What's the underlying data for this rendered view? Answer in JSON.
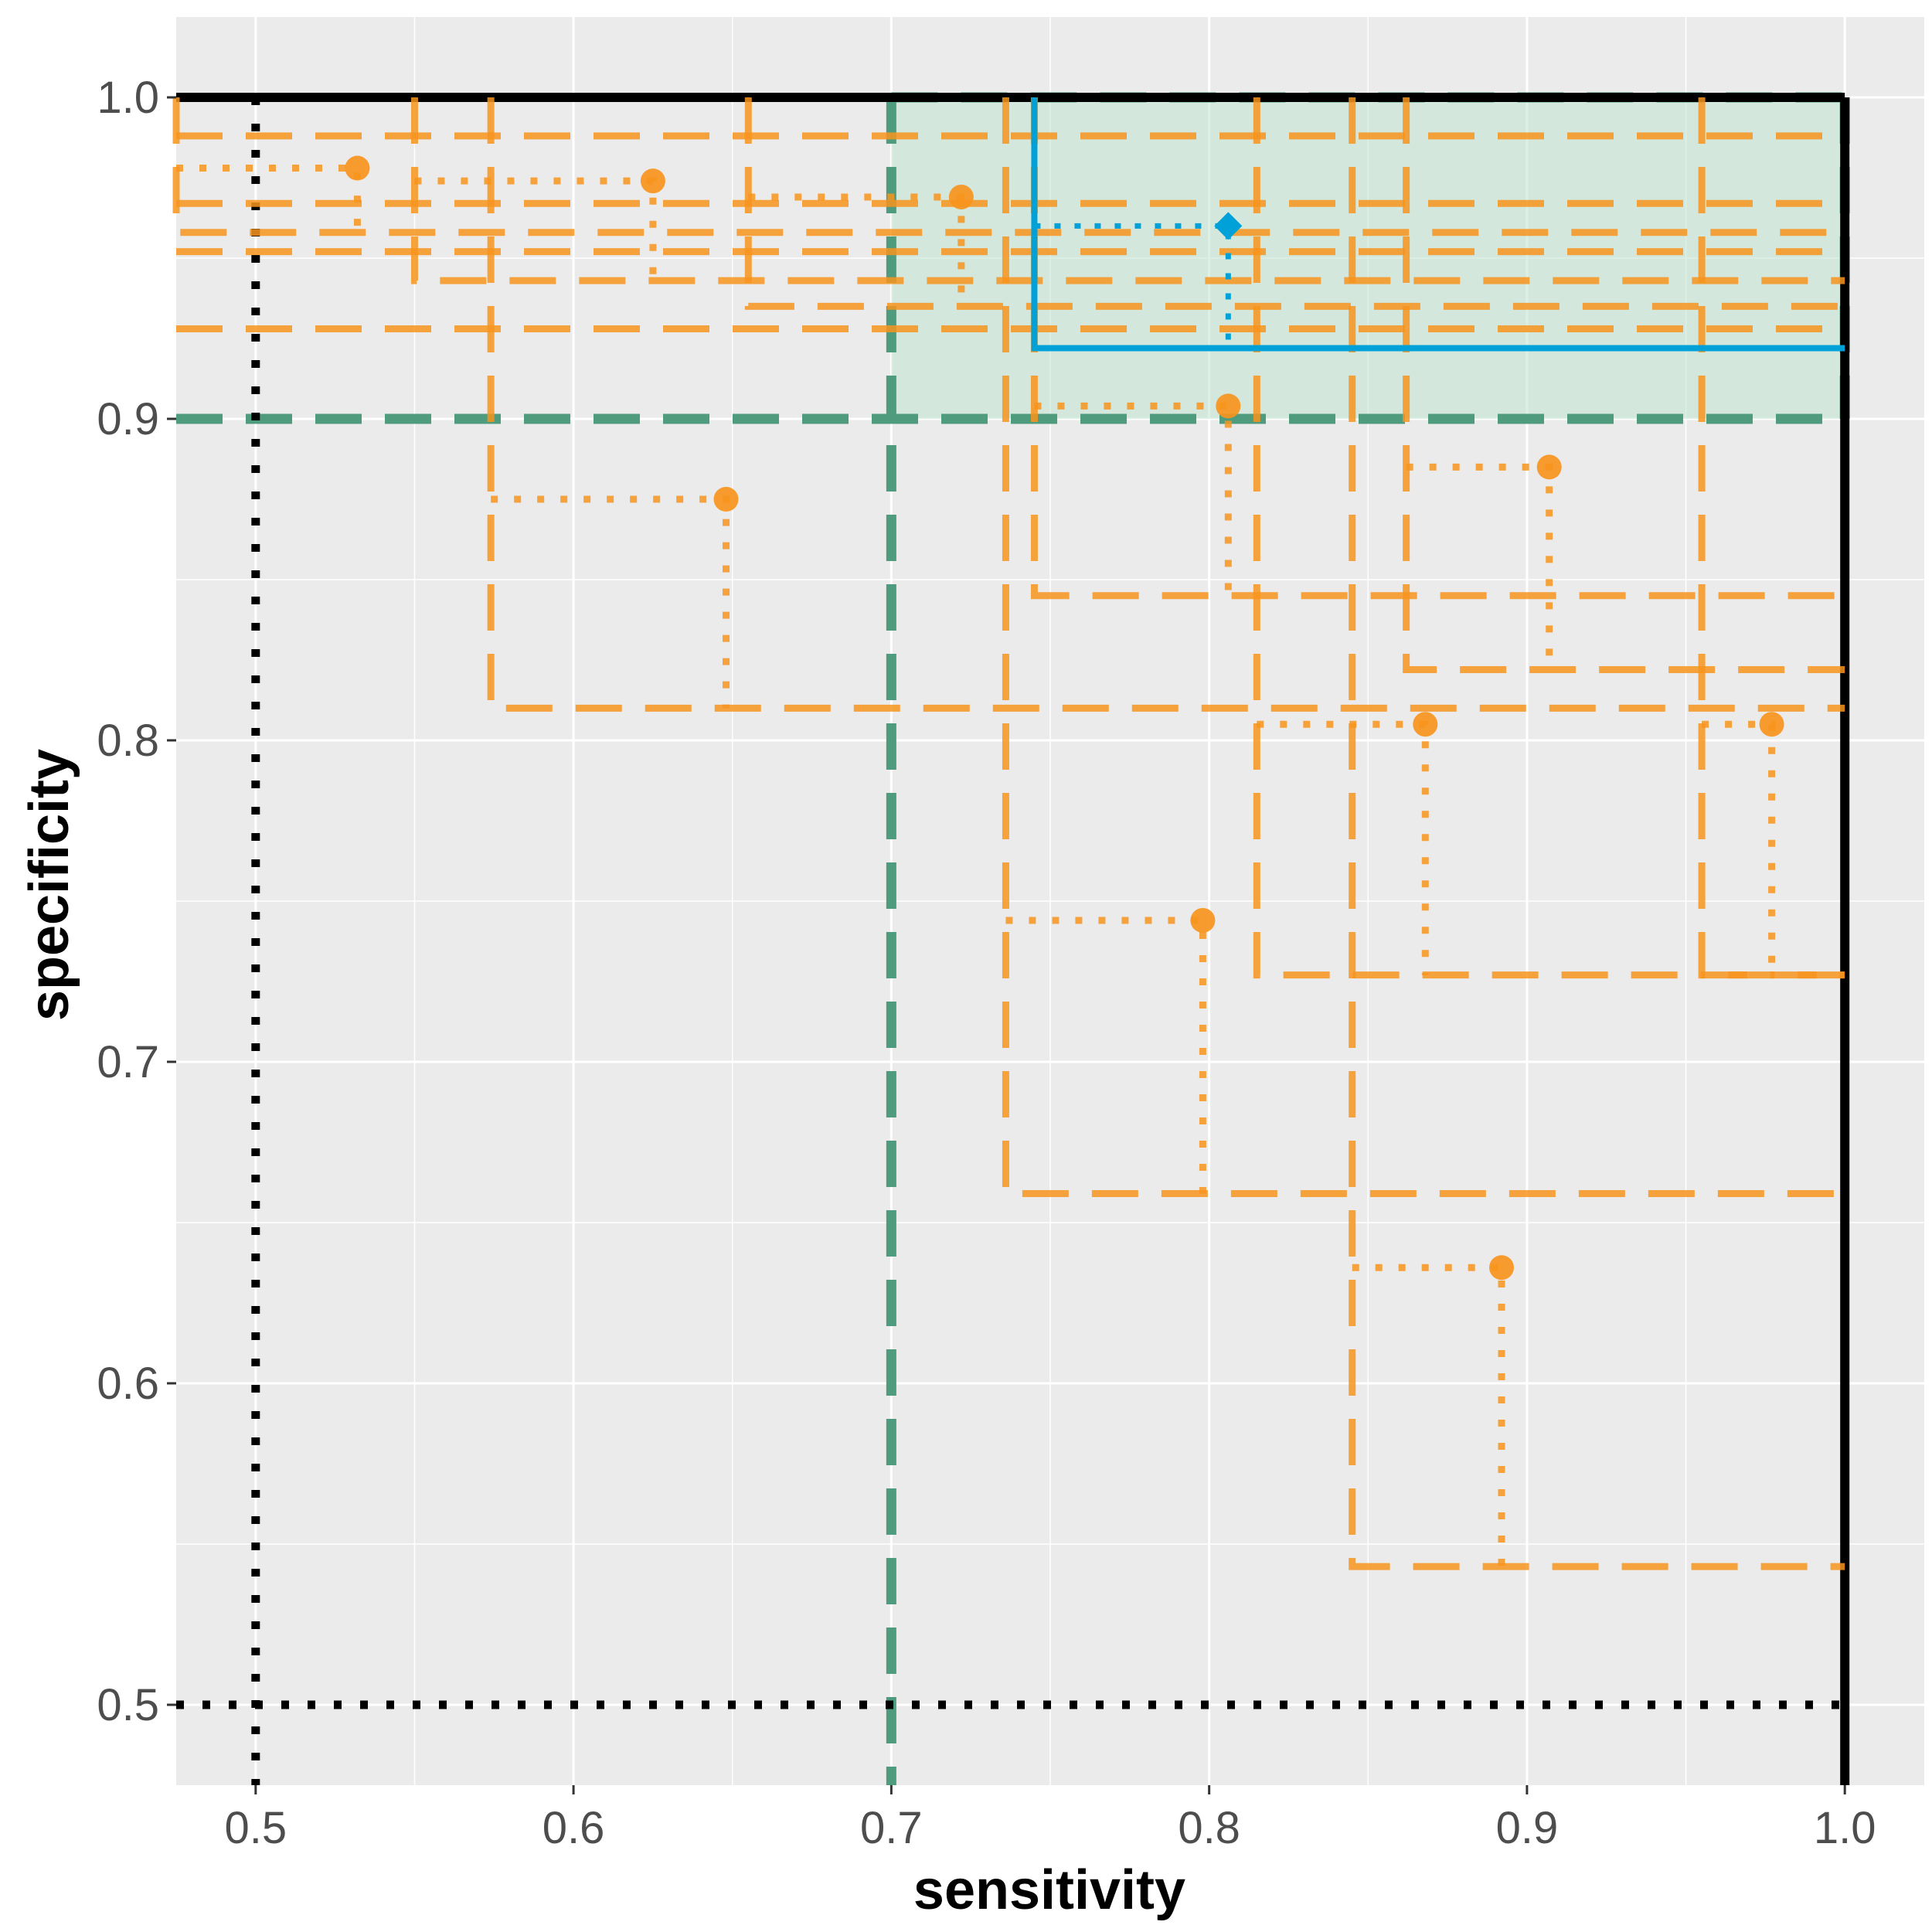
{
  "chart_data": {
    "type": "scatter",
    "title": "",
    "xlabel": "sensitivity",
    "ylabel": "specificity",
    "xlim": [
      0.475,
      1.025
    ],
    "ylim": [
      0.475,
      1.025
    ],
    "xticks": [
      "0.5",
      "0.6",
      "0.7",
      "0.8",
      "0.9",
      "1.0"
    ],
    "yticks": [
      "0.5",
      "0.6",
      "0.7",
      "0.8",
      "0.9",
      "1.0"
    ],
    "grid": true,
    "colors": {
      "panel": "#ebebeb",
      "grid": "#ffffff",
      "studies": "#f7941d",
      "pooled": "#00a0d8",
      "target_region": "#4f9b7e",
      "target_fill": "#bfe3cf",
      "reference": "#000000"
    },
    "target_region": {
      "sensitivity_min": 0.7,
      "specificity_min": 0.9
    },
    "reference_lines": {
      "sensitivity": 0.5,
      "specificity": 0.5
    },
    "studies": [
      {
        "sensitivity": 0.532,
        "specificity": 0.978,
        "ci_sensitivity_lower": 0.475,
        "ci_specificity_lower": 0.958
      },
      {
        "sensitivity": 0.625,
        "specificity": 0.974,
        "ci_sensitivity_lower": 0.55,
        "ci_specificity_lower": 0.943
      },
      {
        "sensitivity": 0.722,
        "specificity": 0.969,
        "ci_sensitivity_lower": 0.655,
        "ci_specificity_lower": 0.935
      },
      {
        "sensitivity": 0.806,
        "specificity": 0.904,
        "ci_sensitivity_lower": 0.745,
        "ci_specificity_lower": 0.845
      },
      {
        "sensitivity": 0.648,
        "specificity": 0.875,
        "ci_sensitivity_lower": 0.574,
        "ci_specificity_lower": 0.81
      },
      {
        "sensitivity": 0.907,
        "specificity": 0.885,
        "ci_sensitivity_lower": 0.862,
        "ci_specificity_lower": 0.822
      },
      {
        "sensitivity": 0.868,
        "specificity": 0.805,
        "ci_sensitivity_lower": 0.815,
        "ci_specificity_lower": 0.727
      },
      {
        "sensitivity": 0.977,
        "specificity": 0.805,
        "ci_sensitivity_lower": 0.955,
        "ci_specificity_lower": 0.727
      },
      {
        "sensitivity": 0.798,
        "specificity": 0.744,
        "ci_sensitivity_lower": 0.736,
        "ci_specificity_lower": 0.659
      },
      {
        "sensitivity": 0.892,
        "specificity": 0.636,
        "ci_sensitivity_lower": 0.845,
        "ci_specificity_lower": 0.543
      }
    ],
    "extra_study_ci_lines": [
      {
        "specificity_lower": 0.988
      },
      {
        "specificity_lower": 0.967
      },
      {
        "specificity_lower": 0.952
      },
      {
        "specificity_lower": 0.928
      }
    ],
    "pooled_estimate": {
      "sensitivity": 0.806,
      "specificity": 0.96,
      "ci_sensitivity_lower": 0.745,
      "ci_specificity_lower": 0.922
    }
  }
}
